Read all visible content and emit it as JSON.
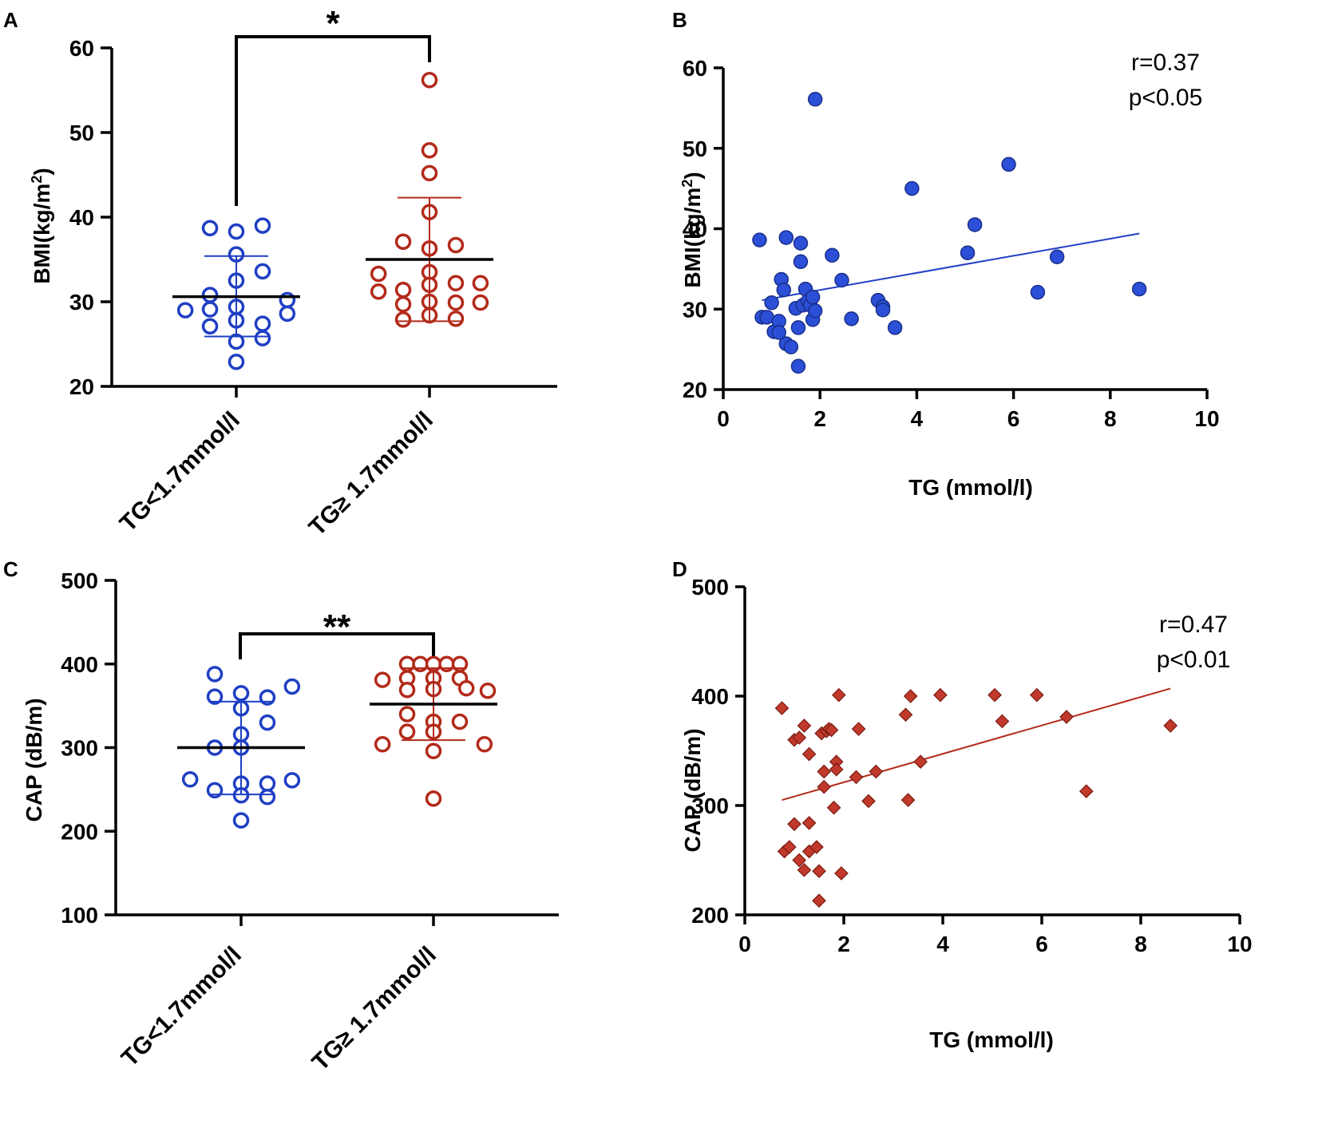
{
  "colors": {
    "blue": "#1f3fc4",
    "red": "#b32a1a",
    "blue_fill": "#2b4fd6",
    "red_fill": "#c0392b",
    "axis": "#000000"
  },
  "chart_data": [
    {
      "id": "A",
      "panel_label": "A",
      "type": "scatter",
      "subtype": "dot-plot",
      "ylabel": "BMI(kg/m",
      "ylabel_sup": "2",
      "ylabel_close": ")",
      "ylim": [
        20,
        60
      ],
      "yticks": [
        20,
        30,
        40,
        50,
        60
      ],
      "categories": [
        "TG<1.7mmol/l",
        "TG≥ 1.7mmol/l"
      ],
      "significance": "*",
      "series": [
        {
          "name": "TG<1.7mmol/l",
          "color": "blue",
          "mean": 30.6,
          "sd_low": 25.9,
          "sd_high": 35.4,
          "points": [
            {
              "dx": -0.31,
              "y": 29.0
            },
            {
              "dx": -0.16,
              "y": 38.7
            },
            {
              "dx": 0.0,
              "y": 38.3
            },
            {
              "dx": 0.16,
              "y": 39.0
            },
            {
              "dx": -0.16,
              "y": 30.8
            },
            {
              "dx": 0.0,
              "y": 35.6
            },
            {
              "dx": 0.16,
              "y": 33.6
            },
            {
              "dx": 0.31,
              "y": 30.2
            },
            {
              "dx": -0.16,
              "y": 29.1
            },
            {
              "dx": 0.0,
              "y": 32.5
            },
            {
              "dx": 0.16,
              "y": 27.4
            },
            {
              "dx": 0.31,
              "y": 28.6
            },
            {
              "dx": -0.16,
              "y": 27.1
            },
            {
              "dx": 0.0,
              "y": 29.4
            },
            {
              "dx": 0.16,
              "y": 25.7
            },
            {
              "dx": 0.0,
              "y": 25.3
            },
            {
              "dx": 0.0,
              "y": 27.8
            },
            {
              "dx": 0.0,
              "y": 22.9
            }
          ]
        },
        {
          "name": "TG≥ 1.7mmol/l",
          "color": "red",
          "mean": 35.0,
          "sd_low": 27.7,
          "sd_high": 42.3,
          "points": [
            {
              "dx": 0.0,
              "y": 56.2
            },
            {
              "dx": 0.0,
              "y": 47.9
            },
            {
              "dx": 0.0,
              "y": 45.2
            },
            {
              "dx": 0.0,
              "y": 40.6
            },
            {
              "dx": -0.16,
              "y": 37.1
            },
            {
              "dx": 0.0,
              "y": 36.3
            },
            {
              "dx": 0.16,
              "y": 36.7
            },
            {
              "dx": -0.31,
              "y": 33.3
            },
            {
              "dx": 0.0,
              "y": 33.5
            },
            {
              "dx": -0.31,
              "y": 31.2
            },
            {
              "dx": -0.16,
              "y": 31.4
            },
            {
              "dx": 0.0,
              "y": 32.0
            },
            {
              "dx": 0.16,
              "y": 32.2
            },
            {
              "dx": 0.31,
              "y": 32.2
            },
            {
              "dx": -0.16,
              "y": 29.7
            },
            {
              "dx": 0.0,
              "y": 30.0
            },
            {
              "dx": 0.16,
              "y": 29.9
            },
            {
              "dx": 0.31,
              "y": 29.9
            },
            {
              "dx": -0.16,
              "y": 27.9
            },
            {
              "dx": 0.0,
              "y": 28.4
            },
            {
              "dx": 0.16,
              "y": 28.0
            }
          ]
        }
      ]
    },
    {
      "id": "B",
      "panel_label": "B",
      "type": "scatter",
      "xlabel": "TG (mmol/l)",
      "ylabel": "BMI(kg/m",
      "ylabel_sup": "2",
      "ylabel_close": ")",
      "xlim": [
        0,
        10
      ],
      "ylim": [
        20,
        60
      ],
      "xticks": [
        0,
        2,
        4,
        6,
        8,
        10
      ],
      "yticks": [
        20,
        30,
        40,
        50,
        60
      ],
      "r_text": "r=0.37",
      "p_text": "p<0.05",
      "color": "blue",
      "trend": {
        "x1": 0.8,
        "y1": 31.1,
        "x2": 8.6,
        "y2": 39.4
      },
      "points": [
        [
          0.75,
          38.6
        ],
        [
          0.8,
          29.0
        ],
        [
          0.9,
          29.0
        ],
        [
          1.0,
          30.8
        ],
        [
          1.05,
          27.2
        ],
        [
          1.15,
          28.5
        ],
        [
          1.15,
          27.1
        ],
        [
          1.2,
          33.7
        ],
        [
          1.25,
          32.4
        ],
        [
          1.3,
          38.9
        ],
        [
          1.3,
          25.7
        ],
        [
          1.4,
          25.3
        ],
        [
          1.5,
          30.1
        ],
        [
          1.55,
          22.9
        ],
        [
          1.55,
          27.7
        ],
        [
          1.6,
          38.2
        ],
        [
          1.6,
          35.9
        ],
        [
          1.65,
          30.5
        ],
        [
          1.7,
          32.5
        ],
        [
          1.75,
          31.0
        ],
        [
          1.8,
          30.5
        ],
        [
          1.85,
          31.5
        ],
        [
          1.85,
          28.7
        ],
        [
          1.9,
          29.8
        ],
        [
          1.9,
          56.1
        ],
        [
          2.25,
          36.7
        ],
        [
          2.45,
          33.6
        ],
        [
          2.65,
          28.8
        ],
        [
          3.2,
          31.1
        ],
        [
          3.3,
          30.3
        ],
        [
          3.3,
          29.9
        ],
        [
          3.55,
          27.7
        ],
        [
          3.9,
          45.0
        ],
        [
          5.05,
          37.0
        ],
        [
          5.2,
          40.5
        ],
        [
          5.9,
          48.0
        ],
        [
          6.5,
          32.1
        ],
        [
          6.9,
          36.5
        ],
        [
          8.6,
          32.5
        ]
      ]
    },
    {
      "id": "C",
      "panel_label": "C",
      "type": "scatter",
      "subtype": "dot-plot",
      "ylabel": "CAP (dB/m)",
      "ylim": [
        100,
        500
      ],
      "yticks": [
        100,
        200,
        300,
        400,
        500
      ],
      "categories": [
        "TG<1.7mmol/l",
        "TG≥ 1.7mmol/l"
      ],
      "significance": "**",
      "series": [
        {
          "name": "TG<1.7mmol/l",
          "color": "blue",
          "mean": 300,
          "sd_low": 244,
          "sd_high": 355,
          "points": [
            {
              "dx": -0.31,
              "y": 262
            },
            {
              "dx": -0.16,
              "y": 388
            },
            {
              "dx": -0.16,
              "y": 361
            },
            {
              "dx": 0.0,
              "y": 365
            },
            {
              "dx": 0.16,
              "y": 360
            },
            {
              "dx": 0.31,
              "y": 373
            },
            {
              "dx": 0.0,
              "y": 347
            },
            {
              "dx": 0.16,
              "y": 330
            },
            {
              "dx": 0.0,
              "y": 316
            },
            {
              "dx": -0.16,
              "y": 300
            },
            {
              "dx": 0.0,
              "y": 300
            },
            {
              "dx": 0.31,
              "y": 261
            },
            {
              "dx": -0.16,
              "y": 249
            },
            {
              "dx": 0.0,
              "y": 257
            },
            {
              "dx": 0.16,
              "y": 257
            },
            {
              "dx": 0.0,
              "y": 243
            },
            {
              "dx": 0.16,
              "y": 241
            },
            {
              "dx": 0.0,
              "y": 213
            }
          ]
        },
        {
          "name": "TG≥ 1.7mmol/l",
          "color": "red",
          "mean": 352,
          "sd_low": 309,
          "sd_high": 395,
          "points": [
            {
              "dx": -0.16,
              "y": 400
            },
            {
              "dx": -0.08,
              "y": 400
            },
            {
              "dx": 0.0,
              "y": 400
            },
            {
              "dx": 0.08,
              "y": 400
            },
            {
              "dx": 0.16,
              "y": 400
            },
            {
              "dx": -0.31,
              "y": 381
            },
            {
              "dx": -0.16,
              "y": 383
            },
            {
              "dx": 0.0,
              "y": 383
            },
            {
              "dx": 0.16,
              "y": 383
            },
            {
              "dx": -0.16,
              "y": 369
            },
            {
              "dx": 0.0,
              "y": 370
            },
            {
              "dx": 0.2,
              "y": 371
            },
            {
              "dx": 0.33,
              "y": 368
            },
            {
              "dx": -0.16,
              "y": 340
            },
            {
              "dx": 0.0,
              "y": 331
            },
            {
              "dx": 0.16,
              "y": 331
            },
            {
              "dx": -0.16,
              "y": 319
            },
            {
              "dx": 0.0,
              "y": 319
            },
            {
              "dx": -0.31,
              "y": 304
            },
            {
              "dx": 0.0,
              "y": 296
            },
            {
              "dx": 0.31,
              "y": 304
            },
            {
              "dx": 0.0,
              "y": 239
            }
          ]
        }
      ]
    },
    {
      "id": "D",
      "panel_label": "D",
      "type": "scatter",
      "xlabel": "TG (mmol/l)",
      "ylabel": "CAP (dB/m)",
      "xlim": [
        0,
        10
      ],
      "ylim": [
        200,
        500
      ],
      "xticks": [
        0,
        2,
        4,
        6,
        8,
        10
      ],
      "yticks": [
        200,
        300,
        400,
        500
      ],
      "r_text": "r=0.47",
      "p_text": "p<0.01",
      "color": "red",
      "trend": {
        "x1": 0.75,
        "y1": 305,
        "x2": 8.6,
        "y2": 407
      },
      "points": [
        [
          0.75,
          389
        ],
        [
          0.8,
          258
        ],
        [
          0.9,
          262
        ],
        [
          1.0,
          283
        ],
        [
          1.0,
          360
        ],
        [
          1.1,
          362
        ],
        [
          1.1,
          250
        ],
        [
          1.2,
          373
        ],
        [
          1.2,
          241
        ],
        [
          1.3,
          347
        ],
        [
          1.3,
          284
        ],
        [
          1.3,
          258
        ],
        [
          1.45,
          262
        ],
        [
          1.5,
          213
        ],
        [
          1.5,
          240
        ],
        [
          1.55,
          366
        ],
        [
          1.6,
          331
        ],
        [
          1.6,
          317
        ],
        [
          1.65,
          368
        ],
        [
          1.7,
          370
        ],
        [
          1.75,
          369
        ],
        [
          1.8,
          298
        ],
        [
          1.85,
          340
        ],
        [
          1.85,
          333
        ],
        [
          1.9,
          401
        ],
        [
          1.95,
          238
        ],
        [
          2.25,
          326
        ],
        [
          2.3,
          370
        ],
        [
          2.5,
          304
        ],
        [
          2.65,
          331
        ],
        [
          3.25,
          383
        ],
        [
          3.3,
          305
        ],
        [
          3.35,
          400
        ],
        [
          3.55,
          340
        ],
        [
          3.95,
          401
        ],
        [
          5.05,
          401
        ],
        [
          5.2,
          377
        ],
        [
          5.9,
          401
        ],
        [
          6.5,
          381
        ],
        [
          6.9,
          313
        ],
        [
          8.6,
          373
        ]
      ]
    }
  ]
}
